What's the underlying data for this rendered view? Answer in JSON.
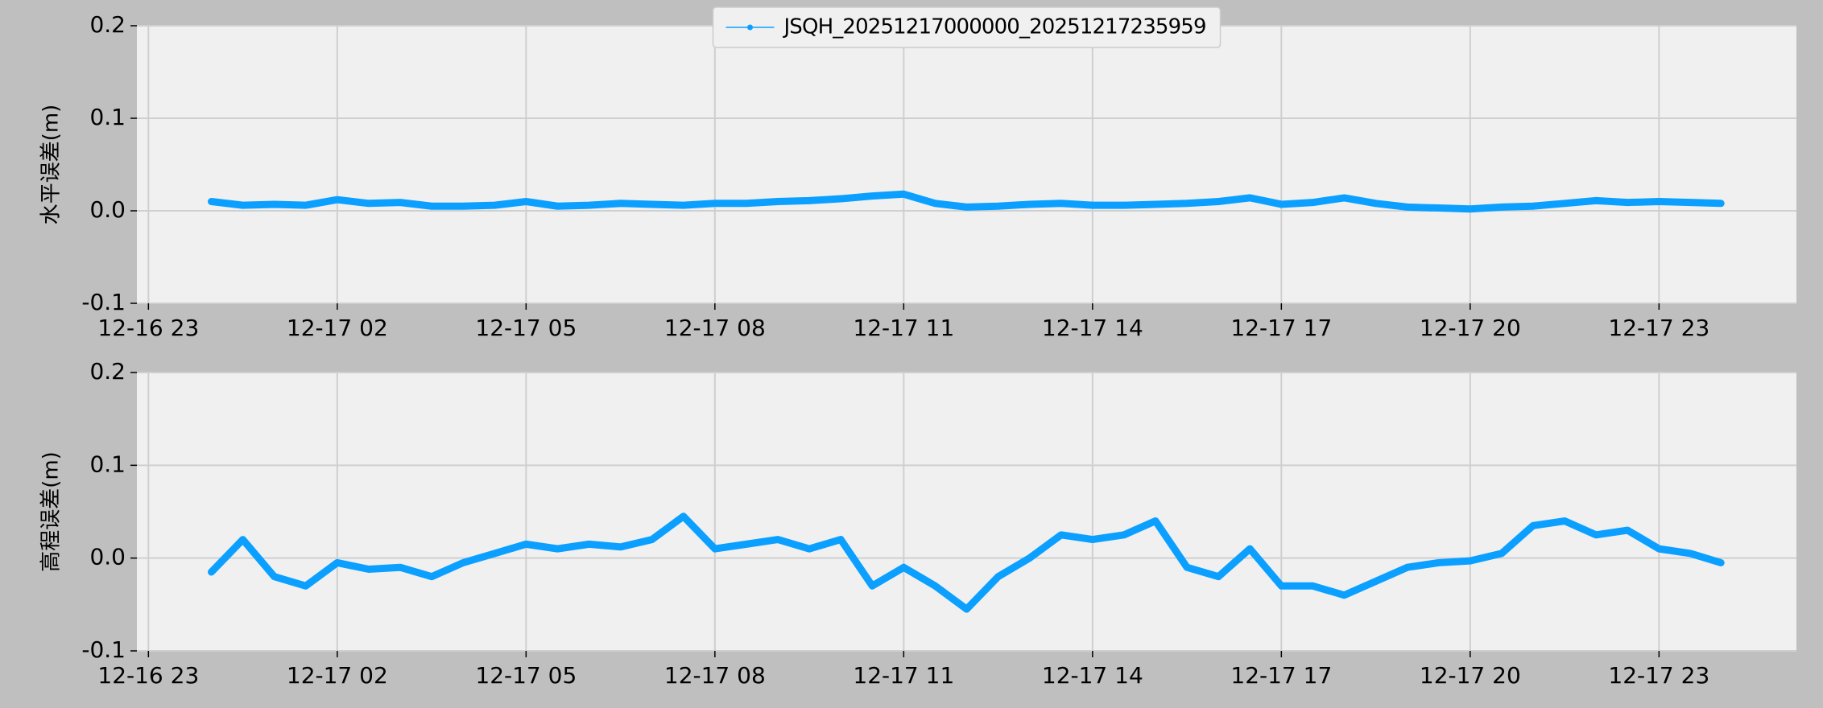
{
  "chart_data": [
    {
      "type": "line",
      "ylabel": "水平误差(m)",
      "legend": "upper center",
      "x": [
        "12-17 00:00",
        "12-17 00:30",
        "12-17 01:00",
        "12-17 01:30",
        "12-17 02:00",
        "12-17 02:30",
        "12-17 03:00",
        "12-17 03:30",
        "12-17 04:00",
        "12-17 04:30",
        "12-17 05:00",
        "12-17 05:30",
        "12-17 06:00",
        "12-17 06:30",
        "12-17 07:00",
        "12-17 07:30",
        "12-17 08:00",
        "12-17 08:30",
        "12-17 09:00",
        "12-17 09:30",
        "12-17 10:00",
        "12-17 10:30",
        "12-17 11:00",
        "12-17 11:30",
        "12-17 12:00",
        "12-17 12:30",
        "12-17 13:00",
        "12-17 13:30",
        "12-17 14:00",
        "12-17 14:30",
        "12-17 15:00",
        "12-17 15:30",
        "12-17 16:00",
        "12-17 16:30",
        "12-17 17:00",
        "12-17 17:30",
        "12-17 18:00",
        "12-17 18:30",
        "12-17 19:00",
        "12-17 19:30",
        "12-17 20:00",
        "12-17 20:30",
        "12-17 21:00",
        "12-17 21:30",
        "12-17 22:00",
        "12-17 22:30",
        "12-17 23:00",
        "12-17 23:30",
        "12-17 23:59"
      ],
      "series": [
        {
          "name": "JSQH_20251217000000_20251217235959",
          "color": "#0ba0ff",
          "values": [
            0.01,
            0.006,
            0.007,
            0.006,
            0.012,
            0.008,
            0.009,
            0.005,
            0.005,
            0.006,
            0.01,
            0.005,
            0.006,
            0.008,
            0.007,
            0.006,
            0.008,
            0.008,
            0.01,
            0.011,
            0.013,
            0.016,
            0.018,
            0.008,
            0.004,
            0.005,
            0.007,
            0.008,
            0.006,
            0.006,
            0.007,
            0.008,
            0.01,
            0.014,
            0.007,
            0.009,
            0.014,
            0.008,
            0.004,
            0.003,
            0.002,
            0.004,
            0.005,
            0.008,
            0.011,
            0.009,
            0.01,
            0.009,
            0.008
          ]
        }
      ],
      "xlim": [
        "12-16 22:49",
        "12-18 01:11"
      ],
      "xticks": [
        "12-16 23",
        "12-17 02",
        "12-17 05",
        "12-17 08",
        "12-17 11",
        "12-17 14",
        "12-17 17",
        "12-17 20",
        "12-17 23"
      ],
      "ylim": [
        -0.1,
        0.2
      ],
      "yticks": [
        -0.1,
        {
          "value": 0,
          "label": "0.0"
        },
        0.1,
        0.2
      ],
      "grid": true
    },
    {
      "type": "line",
      "ylabel": "高程误差(m)",
      "x": [
        "12-17 00:00",
        "12-17 00:30",
        "12-17 01:00",
        "12-17 01:30",
        "12-17 02:00",
        "12-17 02:30",
        "12-17 03:00",
        "12-17 03:30",
        "12-17 04:00",
        "12-17 04:30",
        "12-17 05:00",
        "12-17 05:30",
        "12-17 06:00",
        "12-17 06:30",
        "12-17 07:00",
        "12-17 07:30",
        "12-17 08:00",
        "12-17 08:30",
        "12-17 09:00",
        "12-17 09:30",
        "12-17 10:00",
        "12-17 10:30",
        "12-17 11:00",
        "12-17 11:30",
        "12-17 12:00",
        "12-17 12:30",
        "12-17 13:00",
        "12-17 13:30",
        "12-17 14:00",
        "12-17 14:30",
        "12-17 15:00",
        "12-17 15:30",
        "12-17 16:00",
        "12-17 16:30",
        "12-17 17:00",
        "12-17 17:30",
        "12-17 18:00",
        "12-17 18:30",
        "12-17 19:00",
        "12-17 19:30",
        "12-17 20:00",
        "12-17 20:30",
        "12-17 21:00",
        "12-17 21:30",
        "12-17 22:00",
        "12-17 22:30",
        "12-17 23:00",
        "12-17 23:30",
        "12-17 23:59"
      ],
      "series": [
        {
          "color": "#0ba0ff",
          "values": [
            -0.015,
            0.02,
            -0.02,
            -0.03,
            -0.005,
            -0.012,
            -0.01,
            -0.02,
            -0.005,
            0.005,
            0.015,
            0.01,
            0.015,
            0.012,
            0.02,
            0.045,
            0.01,
            0.015,
            0.02,
            0.01,
            0.02,
            -0.03,
            -0.01,
            -0.03,
            -0.055,
            -0.02,
            0.0,
            0.025,
            0.02,
            0.025,
            0.04,
            -0.01,
            -0.02,
            0.01,
            -0.03,
            -0.03,
            -0.04,
            -0.025,
            -0.01,
            -0.005,
            -0.003,
            0.005,
            0.035,
            0.04,
            0.025,
            0.03,
            0.01,
            0.005,
            -0.005
          ]
        }
      ],
      "xlim": [
        "12-16 22:49",
        "12-18 01:11"
      ],
      "xticks": [
        "12-16 23",
        "12-17 02",
        "12-17 05",
        "12-17 08",
        "12-17 11",
        "12-17 14",
        "12-17 17",
        "12-17 20",
        "12-17 23"
      ],
      "ylim": [
        -0.1,
        0.2
      ],
      "yticks": [
        -0.1,
        {
          "value": 0,
          "label": "0.0"
        },
        0.1,
        0.2
      ],
      "grid": true
    }
  ]
}
